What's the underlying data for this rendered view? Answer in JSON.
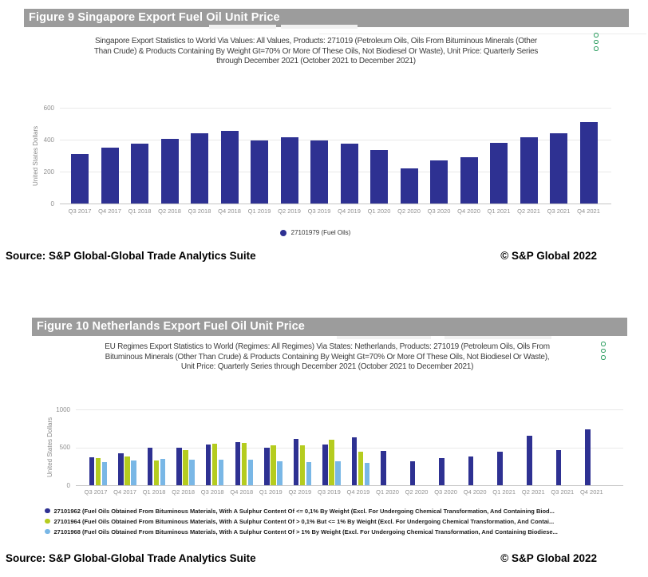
{
  "figure9": {
    "header": "Figure 9 Singapore Export Fuel Oil Unit Price",
    "subtitle": "Singapore Export Statistics to World Via Values: All Values, Products: 271019 (Petroleum Oils, Oils From Bituminous Minerals (Other Than Crude) & Products Containing By Weight Gt=70% Or More Of These Oils, Not Biodiesel Or Waste), Unit Price: Quarterly Series through December 2021 (October 2021 to December 2021)",
    "menu_icon": "kebab-menu",
    "source": "Source: S&P Global-Global Trade Analytics Suite",
    "copyright": "© S&P Global 2022"
  },
  "figure10": {
    "header": "Figure 10 Netherlands Export Fuel Oil Unit Price",
    "subtitle": "EU Regimes Export Statistics to World (Regimes: All Regimes) Via States: Netherlands, Products: 271019 (Petroleum Oils, Oils From Bituminous Minerals (Other Than Crude) & Products Containing By Weight Gt=70% Or More Of These Oils, Not Biodiesel Or Waste), Unit Price: Quarterly Series through December 2021 (October 2021 to December 2021)",
    "menu_icon": "kebab-menu",
    "source": "Source: S&P Global-Global Trade Analytics Suite",
    "copyright": "© S&P Global 2022"
  },
  "colors": {
    "banner_bg": "#9c9c9c",
    "navy": "#2e3192",
    "green": "#b5cc1f",
    "light_blue": "#79b7e6",
    "menu_green": "#2d9e60",
    "axis_text": "#909090"
  },
  "chart_data": [
    {
      "id": "fig9",
      "type": "bar",
      "title": "Figure 9 Singapore Export Fuel Oil Unit Price",
      "xlabel": "",
      "ylabel": "United States Dollars",
      "ylim": [
        0,
        600
      ],
      "yticks": [
        0,
        200,
        400,
        600
      ],
      "grid": true,
      "legend_position": "bottom-center",
      "categories": [
        "Q3 2017",
        "Q4 2017",
        "Q1 2018",
        "Q2 2018",
        "Q3 2018",
        "Q4 2018",
        "Q1 2019",
        "Q2 2019",
        "Q3 2019",
        "Q4 2019",
        "Q1 2020",
        "Q2 2020",
        "Q3 2020",
        "Q4 2020",
        "Q1 2021",
        "Q2 2021",
        "Q3 2021",
        "Q4 2021"
      ],
      "series": [
        {
          "name": "27101979 (Fuel Oils)",
          "color": "#2e3192",
          "values": [
            310,
            350,
            375,
            405,
            440,
            455,
            395,
            415,
            395,
            375,
            335,
            220,
            270,
            290,
            380,
            415,
            440,
            510
          ]
        }
      ]
    },
    {
      "id": "fig10",
      "type": "bar",
      "title": "Figure 10 Netherlands Export Fuel Oil Unit Price",
      "xlabel": "",
      "ylabel": "United States Dollars",
      "ylim": [
        0,
        1000
      ],
      "yticks": [
        0,
        500,
        1000
      ],
      "grid": true,
      "legend_position": "bottom-left",
      "categories": [
        "Q3 2017",
        "Q4 2017",
        "Q1 2018",
        "Q2 2018",
        "Q3 2018",
        "Q4 2018",
        "Q1 2019",
        "Q2 2019",
        "Q3 2019",
        "Q4 2019",
        "Q1 2020",
        "Q2 2020",
        "Q3 2020",
        "Q4 2020",
        "Q1 2021",
        "Q2 2021",
        "Q3 2021",
        "Q4 2021"
      ],
      "series": [
        {
          "name": "27101962 (Fuel Oils Obtained From Bituminous Materials, With A Sulphur Content Of <= 0,1% By Weight (Excl. For Undergoing Chemical Transformation, And Containing Biod...",
          "color": "#2e3192",
          "values": [
            365,
            425,
            490,
            490,
            535,
            565,
            500,
            610,
            540,
            630,
            455,
            315,
            355,
            375,
            445,
            655,
            465,
            740
          ]
        },
        {
          "name": "27101964 (Fuel Oils Obtained From Bituminous Materials, With A Sulphur Content Of > 0,1% But <= 1% By Weight (Excl. For Undergoing Chemical Transformation, And Contai...",
          "color": "#b5cc1f",
          "values": [
            360,
            380,
            330,
            465,
            545,
            560,
            525,
            525,
            595,
            440,
            null,
            null,
            null,
            null,
            null,
            null,
            null,
            null
          ]
        },
        {
          "name": "27101968 (Fuel Oils Obtained From Bituminous Materials, With A Sulphur Content Of > 1% By Weight (Excl. For Undergoing Chemical Transformation, And Containing Biodiese...",
          "color": "#79b7e6",
          "values": [
            305,
            330,
            345,
            335,
            335,
            335,
            320,
            305,
            320,
            295,
            null,
            null,
            null,
            null,
            null,
            null,
            null,
            null
          ]
        }
      ]
    }
  ]
}
